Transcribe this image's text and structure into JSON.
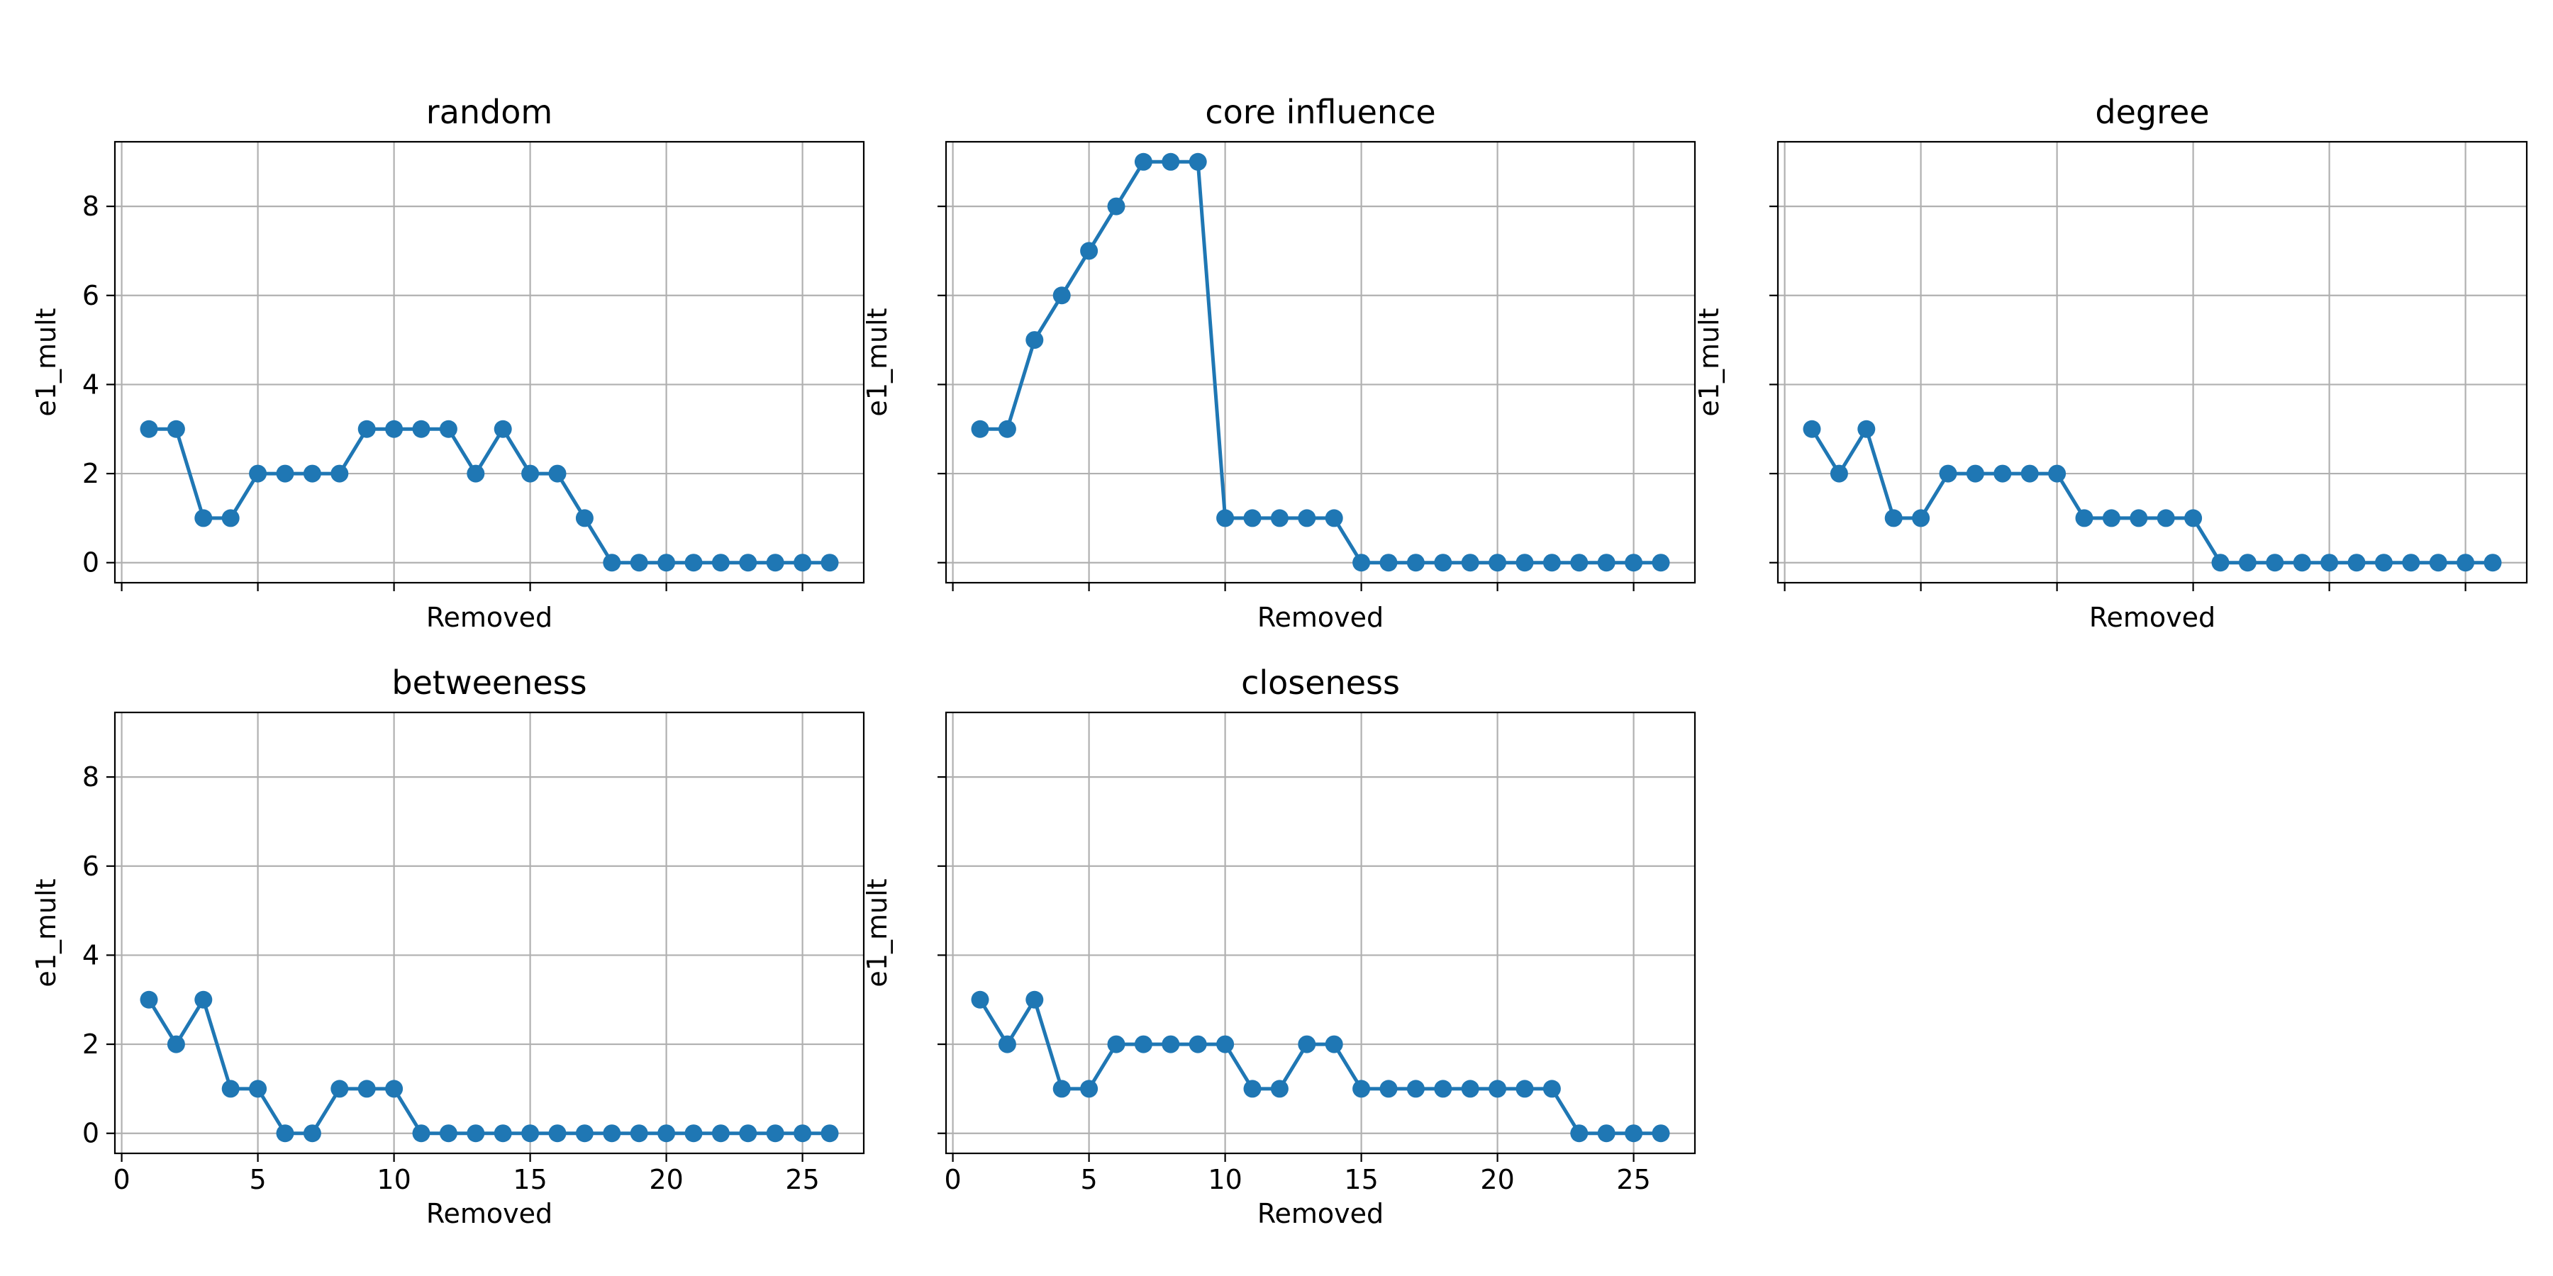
{
  "chart_data": [
    {
      "type": "line",
      "title": "random",
      "xlabel": "Removed",
      "ylabel": "e1_mult",
      "xlim": [
        -0.25,
        27.25
      ],
      "ylim": [
        -0.45,
        9.45
      ],
      "xticks": [
        0,
        5,
        10,
        15,
        20,
        25
      ],
      "yticks": [
        0,
        2,
        4,
        6,
        8
      ],
      "show_xticklabels": false,
      "show_yticklabels": true,
      "grid": true,
      "color": "#1f77b4",
      "series": [
        {
          "x": [
            1,
            2,
            3,
            4,
            5,
            6,
            7,
            8,
            9,
            10,
            11,
            12,
            13,
            14,
            15,
            16,
            17,
            18,
            19,
            20,
            21,
            22,
            23,
            24,
            25,
            26
          ],
          "y": [
            3,
            3,
            1,
            1,
            2,
            2,
            2,
            2,
            3,
            3,
            3,
            3,
            2,
            3,
            2,
            2,
            1,
            0,
            0,
            0,
            0,
            0,
            0,
            0,
            0,
            0
          ]
        }
      ]
    },
    {
      "type": "line",
      "title": "core influence",
      "xlabel": "Removed",
      "ylabel": "e1_mult",
      "xlim": [
        -0.25,
        27.25
      ],
      "ylim": [
        -0.45,
        9.45
      ],
      "xticks": [
        0,
        5,
        10,
        15,
        20,
        25
      ],
      "yticks": [
        0,
        2,
        4,
        6,
        8
      ],
      "show_xticklabels": false,
      "show_yticklabels": false,
      "grid": true,
      "color": "#1f77b4",
      "series": [
        {
          "x": [
            1,
            2,
            3,
            4,
            5,
            6,
            7,
            8,
            9,
            10,
            11,
            12,
            13,
            14,
            15,
            16,
            17,
            18,
            19,
            20,
            21,
            22,
            23,
            24,
            25,
            26
          ],
          "y": [
            3,
            3,
            5,
            6,
            7,
            8,
            9,
            9,
            9,
            1,
            1,
            1,
            1,
            1,
            0,
            0,
            0,
            0,
            0,
            0,
            0,
            0,
            0,
            0,
            0,
            0
          ]
        }
      ]
    },
    {
      "type": "line",
      "title": "degree",
      "xlabel": "Removed",
      "ylabel": "e1_mult",
      "xlim": [
        -0.25,
        27.25
      ],
      "ylim": [
        -0.45,
        9.45
      ],
      "xticks": [
        0,
        5,
        10,
        15,
        20,
        25
      ],
      "yticks": [
        0,
        2,
        4,
        6,
        8
      ],
      "show_xticklabels": false,
      "show_yticklabels": false,
      "grid": true,
      "color": "#1f77b4",
      "series": [
        {
          "x": [
            1,
            2,
            3,
            4,
            5,
            6,
            7,
            8,
            9,
            10,
            11,
            12,
            13,
            14,
            15,
            16,
            17,
            18,
            19,
            20,
            21,
            22,
            23,
            24,
            25,
            26
          ],
          "y": [
            3,
            2,
            3,
            1,
            1,
            2,
            2,
            2,
            2,
            2,
            1,
            1,
            1,
            1,
            1,
            0,
            0,
            0,
            0,
            0,
            0,
            0,
            0,
            0,
            0,
            0
          ]
        }
      ]
    },
    {
      "type": "line",
      "title": "betweeness",
      "xlabel": "Removed",
      "ylabel": "e1_mult",
      "xlim": [
        -0.25,
        27.25
      ],
      "ylim": [
        -0.45,
        9.45
      ],
      "xticks": [
        0,
        5,
        10,
        15,
        20,
        25
      ],
      "yticks": [
        0,
        2,
        4,
        6,
        8
      ],
      "show_xticklabels": true,
      "show_yticklabels": true,
      "grid": true,
      "color": "#1f77b4",
      "series": [
        {
          "x": [
            1,
            2,
            3,
            4,
            5,
            6,
            7,
            8,
            9,
            10,
            11,
            12,
            13,
            14,
            15,
            16,
            17,
            18,
            19,
            20,
            21,
            22,
            23,
            24,
            25,
            26
          ],
          "y": [
            3,
            2,
            3,
            1,
            1,
            0,
            0,
            1,
            1,
            1,
            0,
            0,
            0,
            0,
            0,
            0,
            0,
            0,
            0,
            0,
            0,
            0,
            0,
            0,
            0,
            0
          ]
        }
      ]
    },
    {
      "type": "line",
      "title": "closeness",
      "xlabel": "Removed",
      "ylabel": "e1_mult",
      "xlim": [
        -0.25,
        27.25
      ],
      "ylim": [
        -0.45,
        9.45
      ],
      "xticks": [
        0,
        5,
        10,
        15,
        20,
        25
      ],
      "yticks": [
        0,
        2,
        4,
        6,
        8
      ],
      "show_xticklabels": true,
      "show_yticklabels": false,
      "grid": true,
      "color": "#1f77b4",
      "series": [
        {
          "x": [
            1,
            2,
            3,
            4,
            5,
            6,
            7,
            8,
            9,
            10,
            11,
            12,
            13,
            14,
            15,
            16,
            17,
            18,
            19,
            20,
            21,
            22,
            23,
            24,
            25,
            26
          ],
          "y": [
            3,
            2,
            3,
            1,
            1,
            2,
            2,
            2,
            2,
            2,
            1,
            1,
            2,
            2,
            1,
            1,
            1,
            1,
            1,
            1,
            1,
            1,
            0,
            0,
            0,
            0
          ]
        }
      ]
    }
  ]
}
